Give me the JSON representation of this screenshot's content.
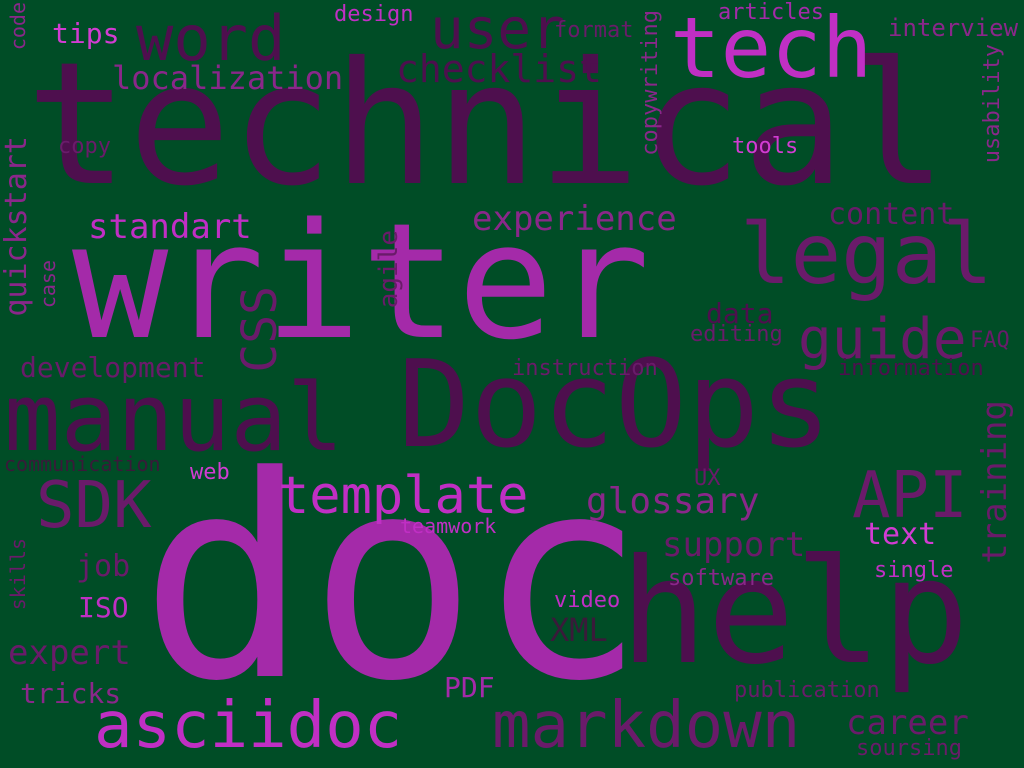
{
  "words": [
    "technical",
    "writer",
    "doc",
    "DocOps",
    "manual",
    "help",
    "tech",
    "legal",
    "word",
    "user",
    "guide",
    "asciidoc",
    "markdown",
    "template",
    "SDK",
    "API",
    "CSS",
    "checklist",
    "localization",
    "experience",
    "glossary",
    "support",
    "standart",
    "content",
    "training",
    "quickstart",
    "expert",
    "career",
    "tips",
    "design",
    "articles",
    "interview",
    "code",
    "format",
    "copywriting",
    "usability",
    "tools",
    "copy",
    "agile",
    "case",
    "data",
    "editing",
    "FAQ",
    "development",
    "instruction",
    "information",
    "communication",
    "web",
    "UX",
    "teamwork",
    "text",
    "job",
    "software",
    "single",
    "skills",
    "ISO",
    "video",
    "XML",
    "PDF",
    "tricks",
    "publication",
    "soursing"
  ]
}
